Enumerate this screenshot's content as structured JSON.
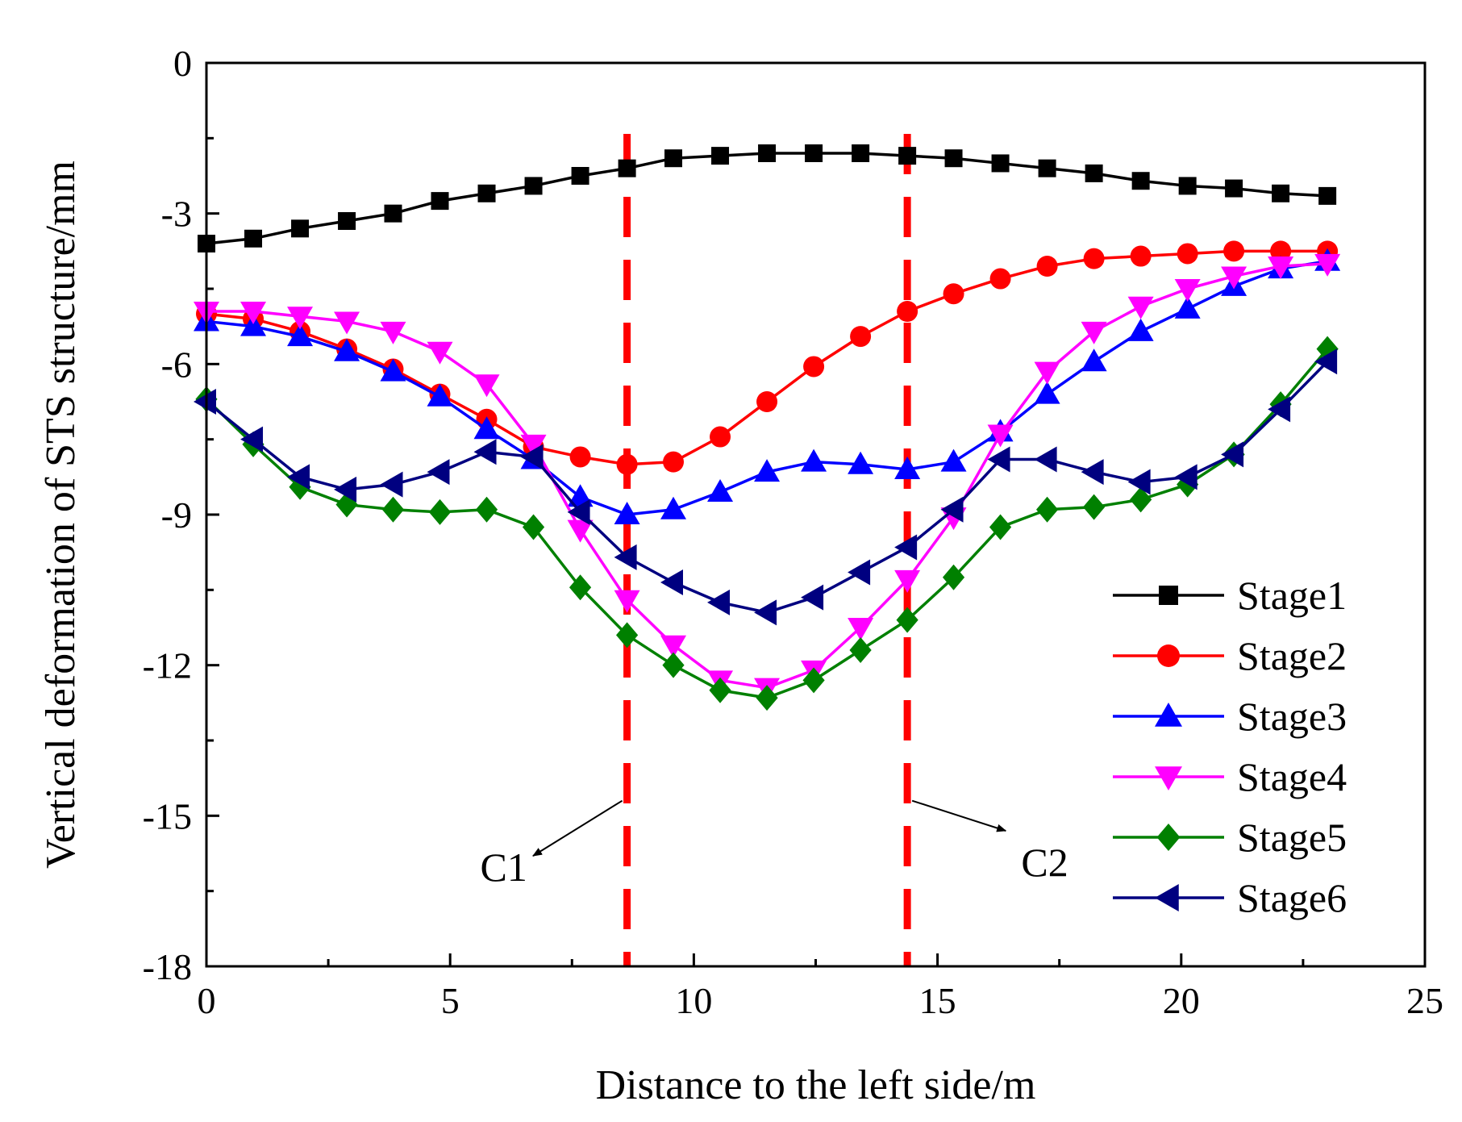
{
  "chart_data": {
    "type": "line",
    "title": "",
    "xlabel": "Distance to the left side/m",
    "ylabel": "Vertical deformation of STS structure/mm",
    "xlim": [
      0,
      25
    ],
    "ylim": [
      -18,
      0
    ],
    "xticks": [
      0,
      5,
      10,
      15,
      20,
      25
    ],
    "yticks": [
      0,
      -3,
      -6,
      -9,
      -12,
      -15,
      -18
    ],
    "x": [
      0,
      0.96,
      1.92,
      2.88,
      3.83,
      4.79,
      5.75,
      6.71,
      7.67,
      8.63,
      9.58,
      10.54,
      11.5,
      12.46,
      13.42,
      14.38,
      15.33,
      16.29,
      17.25,
      18.21,
      19.17,
      20.13,
      21.08,
      22.04,
      23
    ],
    "series": [
      {
        "name": "Stage1",
        "color": "#000000",
        "marker": "square",
        "values": [
          -3.6,
          -3.5,
          -3.3,
          -3.15,
          -3.0,
          -2.75,
          -2.6,
          -2.45,
          -2.25,
          -2.1,
          -1.9,
          -1.85,
          -1.8,
          -1.8,
          -1.8,
          -1.85,
          -1.9,
          -2.0,
          -2.1,
          -2.2,
          -2.35,
          -2.45,
          -2.5,
          -2.6,
          -2.65
        ]
      },
      {
        "name": "Stage2",
        "color": "#ff0000",
        "marker": "circle",
        "values": [
          -5.0,
          -5.1,
          -5.35,
          -5.7,
          -6.1,
          -6.6,
          -7.1,
          -7.65,
          -7.85,
          -8.0,
          -7.95,
          -7.45,
          -6.75,
          -6.05,
          -5.45,
          -4.95,
          -4.6,
          -4.3,
          -4.05,
          -3.9,
          -3.85,
          -3.8,
          -3.75,
          -3.75,
          -3.75
        ]
      },
      {
        "name": "Stage3",
        "color": "#0000ff",
        "marker": "triangle-up",
        "values": [
          -5.15,
          -5.25,
          -5.45,
          -5.75,
          -6.15,
          -6.65,
          -7.3,
          -7.9,
          -8.65,
          -9.0,
          -8.9,
          -8.55,
          -8.15,
          -7.95,
          -8.0,
          -8.1,
          -7.95,
          -7.35,
          -6.6,
          -5.95,
          -5.35,
          -4.9,
          -4.45,
          -4.1,
          -3.95
        ]
      },
      {
        "name": "Stage4",
        "color": "#ff00ff",
        "marker": "triangle-down",
        "values": [
          -4.95,
          -4.95,
          -5.05,
          -5.15,
          -5.35,
          -5.75,
          -6.4,
          -7.6,
          -9.3,
          -10.7,
          -11.6,
          -12.3,
          -12.45,
          -12.1,
          -11.25,
          -10.3,
          -9.05,
          -7.4,
          -6.15,
          -5.35,
          -4.85,
          -4.5,
          -4.25,
          -4.05,
          -4.0
        ]
      },
      {
        "name": "Stage5",
        "color": "#008000",
        "marker": "diamond",
        "values": [
          -6.7,
          -7.6,
          -8.45,
          -8.8,
          -8.9,
          -8.95,
          -8.9,
          -9.25,
          -10.45,
          -11.4,
          -12.0,
          -12.5,
          -12.65,
          -12.3,
          -11.7,
          -11.1,
          -10.25,
          -9.25,
          -8.9,
          -8.85,
          -8.7,
          -8.4,
          -7.8,
          -6.8,
          -5.7
        ]
      },
      {
        "name": "Stage6",
        "color": "#000080",
        "marker": "triangle-left",
        "values": [
          -6.75,
          -7.5,
          -8.25,
          -8.5,
          -8.4,
          -8.15,
          -7.75,
          -7.85,
          -8.95,
          -9.85,
          -10.35,
          -10.75,
          -10.95,
          -10.65,
          -10.15,
          -9.65,
          -8.9,
          -7.9,
          -7.9,
          -8.15,
          -8.35,
          -8.25,
          -7.8,
          -6.9,
          -5.95
        ]
      }
    ],
    "vlines": [
      {
        "name": "C1",
        "x": 8.63,
        "color": "#ff0000",
        "style": "dashed"
      },
      {
        "name": "C2",
        "x": 14.38,
        "color": "#ff0000",
        "style": "dashed"
      }
    ],
    "annotations": [
      {
        "text": "C1",
        "target_line": "C1",
        "side": "left",
        "arrow_from_y": -14.7,
        "arrow_to_y": -15.8,
        "arrow_to_x": 6.7,
        "label_x": 6.1,
        "label_y": -16.3
      },
      {
        "text": "C2",
        "target_line": "C2",
        "side": "right",
        "arrow_from_y": -14.7,
        "arrow_to_y": -15.3,
        "arrow_to_x": 16.4,
        "label_x": 17.2,
        "label_y": -16.2
      }
    ],
    "legend_position": "lower-right",
    "grid": false
  }
}
